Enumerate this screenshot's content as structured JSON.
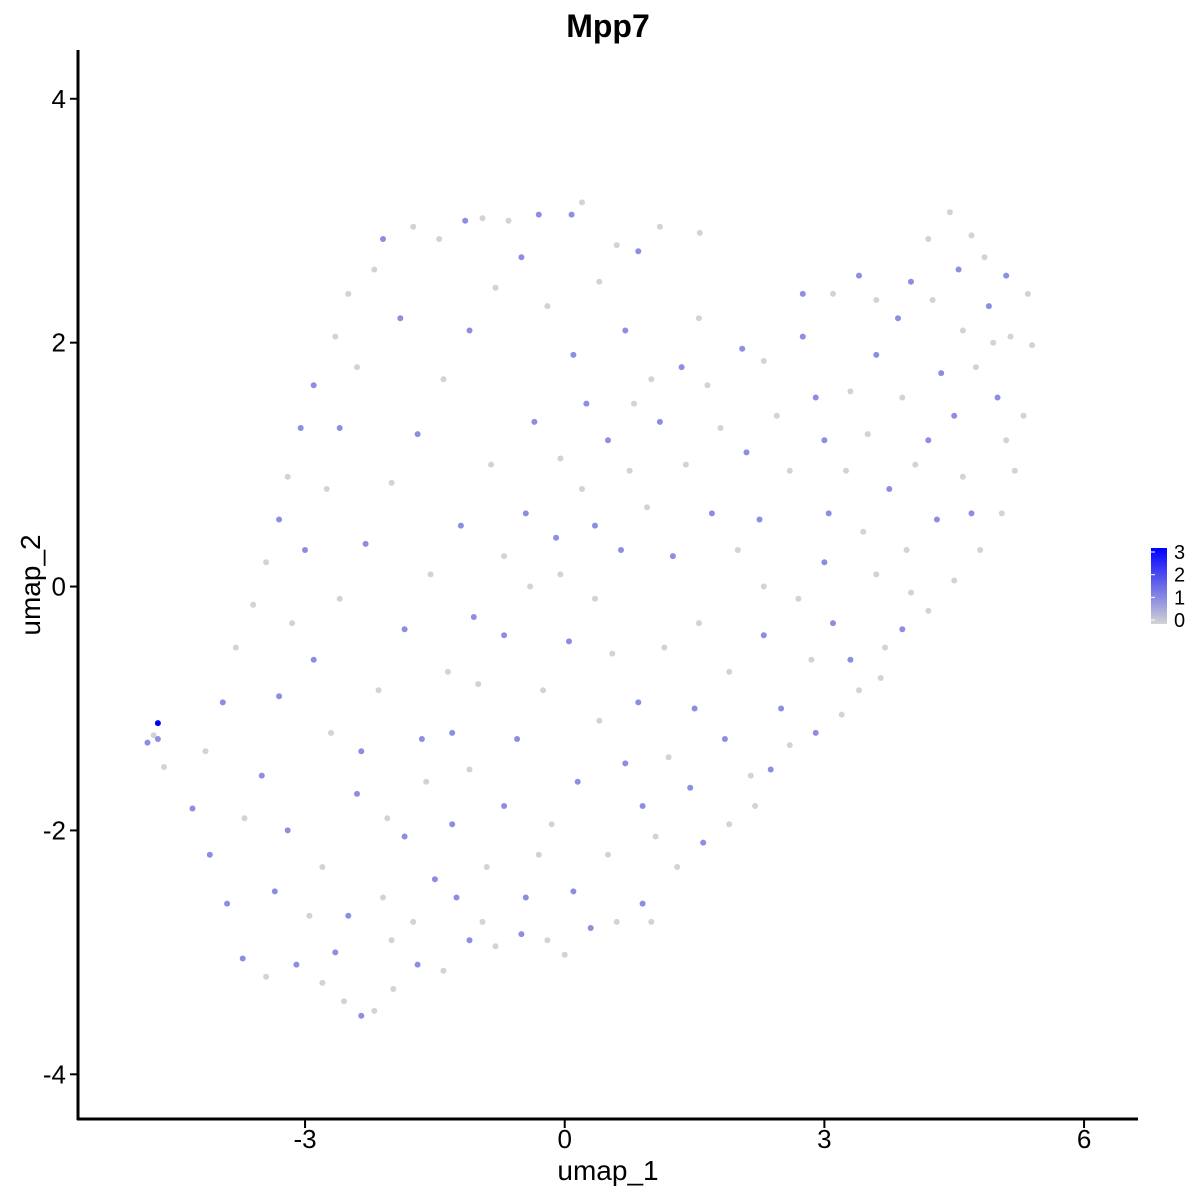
{
  "chart_data": {
    "type": "scatter",
    "title": "Mpp7",
    "xlabel": "umap_1",
    "ylabel": "umap_2",
    "xlim": [
      -5.6,
      6.6
    ],
    "ylim": [
      -4.35,
      4.4
    ],
    "xticks": [
      -3,
      0,
      3,
      6
    ],
    "xtick_labels": [
      "-3",
      "0",
      "3",
      "6"
    ],
    "yticks": [
      -4,
      -2,
      0,
      2,
      4
    ],
    "ytick_labels": [
      "-4",
      "-2",
      "0",
      "2",
      "4"
    ],
    "grid": false,
    "legend": {
      "placement": "right",
      "type": "colorbar",
      "min": 0,
      "max": 3,
      "ticks": [
        "0",
        "1",
        "2",
        "3"
      ],
      "low_color": "#d3d3d3",
      "high_color": "#0000ff"
    },
    "point_color_low": "#d3d3d3",
    "point_color_high": "#0000ff",
    "points": [
      {
        "x": -4.7,
        "y": -1.12,
        "expr": 3
      },
      {
        "x": -4.82,
        "y": -1.28,
        "expr": 1
      },
      {
        "x": -4.7,
        "y": -1.25,
        "expr": 1
      },
      {
        "x": -4.75,
        "y": -1.22,
        "expr": 0
      },
      {
        "x": -4.63,
        "y": -1.48,
        "expr": 0
      },
      {
        "x": -4.3,
        "y": -1.82,
        "expr": 1
      },
      {
        "x": -4.1,
        "y": -2.2,
        "expr": 1
      },
      {
        "x": -3.9,
        "y": -2.6,
        "expr": 1
      },
      {
        "x": -3.72,
        "y": -3.05,
        "expr": 1
      },
      {
        "x": -3.45,
        "y": -3.2,
        "expr": 0
      },
      {
        "x": -3.1,
        "y": -3.1,
        "expr": 1
      },
      {
        "x": -2.8,
        "y": -3.25,
        "expr": 0
      },
      {
        "x": -2.55,
        "y": -3.4,
        "expr": 0
      },
      {
        "x": -2.35,
        "y": -3.52,
        "expr": 1
      },
      {
        "x": -2.2,
        "y": -3.48,
        "expr": 0
      },
      {
        "x": -1.98,
        "y": -3.3,
        "expr": 0
      },
      {
        "x": -1.7,
        "y": -3.1,
        "expr": 1
      },
      {
        "x": -1.4,
        "y": -3.15,
        "expr": 0
      },
      {
        "x": -1.1,
        "y": -2.9,
        "expr": 1
      },
      {
        "x": -0.8,
        "y": -2.95,
        "expr": 0
      },
      {
        "x": -0.5,
        "y": -2.85,
        "expr": 1
      },
      {
        "x": -0.2,
        "y": -2.9,
        "expr": 0
      },
      {
        "x": 0.0,
        "y": -3.02,
        "expr": 0
      },
      {
        "x": 0.3,
        "y": -2.8,
        "expr": 1
      },
      {
        "x": 0.6,
        "y": -2.75,
        "expr": 0
      },
      {
        "x": 0.9,
        "y": -2.6,
        "expr": 1
      },
      {
        "x": 1.0,
        "y": -2.75,
        "expr": 0
      },
      {
        "x": 1.3,
        "y": -2.3,
        "expr": 0
      },
      {
        "x": 1.6,
        "y": -2.1,
        "expr": 1
      },
      {
        "x": 1.9,
        "y": -1.95,
        "expr": 0
      },
      {
        "x": 2.2,
        "y": -1.8,
        "expr": 0
      },
      {
        "x": 2.38,
        "y": -1.5,
        "expr": 1
      },
      {
        "x": 2.6,
        "y": -1.3,
        "expr": 0
      },
      {
        "x": 2.9,
        "y": -1.2,
        "expr": 1
      },
      {
        "x": 3.2,
        "y": -1.05,
        "expr": 0
      },
      {
        "x": 3.4,
        "y": -0.85,
        "expr": 0
      },
      {
        "x": 3.65,
        "y": -0.75,
        "expr": 0
      },
      {
        "x": 3.9,
        "y": -0.35,
        "expr": 1
      },
      {
        "x": 4.2,
        "y": -0.2,
        "expr": 0
      },
      {
        "x": 4.5,
        "y": 0.05,
        "expr": 0
      },
      {
        "x": 4.8,
        "y": 0.3,
        "expr": 0
      },
      {
        "x": 5.05,
        "y": 0.6,
        "expr": 0
      },
      {
        "x": 5.2,
        "y": 0.95,
        "expr": 0
      },
      {
        "x": 5.3,
        "y": 1.4,
        "expr": 0
      },
      {
        "x": 5.4,
        "y": 1.98,
        "expr": 0
      },
      {
        "x": 5.35,
        "y": 2.4,
        "expr": 0
      },
      {
        "x": 5.1,
        "y": 2.55,
        "expr": 1
      },
      {
        "x": 4.85,
        "y": 2.7,
        "expr": 0
      },
      {
        "x": 4.7,
        "y": 2.88,
        "expr": 0
      },
      {
        "x": 4.45,
        "y": 3.07,
        "expr": 0
      },
      {
        "x": 4.2,
        "y": 2.85,
        "expr": 0
      },
      {
        "x": 4.0,
        "y": 2.5,
        "expr": 1
      },
      {
        "x": 3.6,
        "y": 2.35,
        "expr": 0
      },
      {
        "x": 3.4,
        "y": 2.55,
        "expr": 1
      },
      {
        "x": 3.1,
        "y": 2.4,
        "expr": 0
      },
      {
        "x": 2.75,
        "y": 2.05,
        "expr": 1
      },
      {
        "x": 2.75,
        "y": 2.4,
        "expr": 1
      },
      {
        "x": 2.3,
        "y": 1.85,
        "expr": 0
      },
      {
        "x": 2.05,
        "y": 1.95,
        "expr": 1
      },
      {
        "x": 1.65,
        "y": 1.65,
        "expr": 0
      },
      {
        "x": 1.55,
        "y": 2.2,
        "expr": 0
      },
      {
        "x": 1.56,
        "y": 2.9,
        "expr": 0
      },
      {
        "x": 1.1,
        "y": 2.95,
        "expr": 0
      },
      {
        "x": 0.85,
        "y": 2.75,
        "expr": 1
      },
      {
        "x": 0.6,
        "y": 2.8,
        "expr": 0
      },
      {
        "x": 0.2,
        "y": 3.15,
        "expr": 0
      },
      {
        "x": 0.08,
        "y": 3.05,
        "expr": 1
      },
      {
        "x": -0.3,
        "y": 3.05,
        "expr": 1
      },
      {
        "x": -0.65,
        "y": 3.0,
        "expr": 0
      },
      {
        "x": -0.95,
        "y": 3.02,
        "expr": 0
      },
      {
        "x": -1.15,
        "y": 3.0,
        "expr": 1
      },
      {
        "x": -1.45,
        "y": 2.85,
        "expr": 0
      },
      {
        "x": -1.75,
        "y": 2.95,
        "expr": 0
      },
      {
        "x": -2.1,
        "y": 2.85,
        "expr": 1
      },
      {
        "x": -2.2,
        "y": 2.6,
        "expr": 0
      },
      {
        "x": -2.5,
        "y": 2.4,
        "expr": 0
      },
      {
        "x": -2.65,
        "y": 2.05,
        "expr": 0
      },
      {
        "x": -2.9,
        "y": 1.65,
        "expr": 1
      },
      {
        "x": -3.05,
        "y": 1.3,
        "expr": 1
      },
      {
        "x": -3.2,
        "y": 0.9,
        "expr": 0
      },
      {
        "x": -3.3,
        "y": 0.55,
        "expr": 1
      },
      {
        "x": -3.45,
        "y": 0.2,
        "expr": 0
      },
      {
        "x": -3.6,
        "y": -0.15,
        "expr": 0
      },
      {
        "x": -3.8,
        "y": -0.5,
        "expr": 0
      },
      {
        "x": -3.95,
        "y": -0.95,
        "expr": 1
      },
      {
        "x": -4.15,
        "y": -1.35,
        "expr": 0
      },
      {
        "x": -3.5,
        "y": -1.55,
        "expr": 1
      },
      {
        "x": -3.2,
        "y": -2.0,
        "expr": 1
      },
      {
        "x": -2.8,
        "y": -2.3,
        "expr": 0
      },
      {
        "x": -2.5,
        "y": -2.7,
        "expr": 1
      },
      {
        "x": -2.1,
        "y": -2.55,
        "expr": 0
      },
      {
        "x": -1.85,
        "y": -2.05,
        "expr": 1
      },
      {
        "x": -1.6,
        "y": -1.6,
        "expr": 0
      },
      {
        "x": -1.3,
        "y": -1.2,
        "expr": 1
      },
      {
        "x": -1.0,
        "y": -0.8,
        "expr": 0
      },
      {
        "x": -0.7,
        "y": -0.4,
        "expr": 1
      },
      {
        "x": -0.4,
        "y": 0.0,
        "expr": 0
      },
      {
        "x": -0.1,
        "y": 0.4,
        "expr": 1
      },
      {
        "x": 0.2,
        "y": 0.8,
        "expr": 0
      },
      {
        "x": 0.5,
        "y": 1.2,
        "expr": 1
      },
      {
        "x": 0.8,
        "y": 1.5,
        "expr": 0
      },
      {
        "x": 1.1,
        "y": 1.35,
        "expr": 1
      },
      {
        "x": 1.4,
        "y": 1.0,
        "expr": 0
      },
      {
        "x": 1.7,
        "y": 0.6,
        "expr": 1
      },
      {
        "x": 2.0,
        "y": 0.3,
        "expr": 0
      },
      {
        "x": 2.25,
        "y": 0.55,
        "expr": 1
      },
      {
        "x": 2.6,
        "y": 0.95,
        "expr": 0
      },
      {
        "x": 3.0,
        "y": 1.2,
        "expr": 1
      },
      {
        "x": 3.3,
        "y": 1.6,
        "expr": 0
      },
      {
        "x": 3.6,
        "y": 1.9,
        "expr": 1
      },
      {
        "x": 3.9,
        "y": 1.55,
        "expr": 0
      },
      {
        "x": 4.2,
        "y": 1.2,
        "expr": 1
      },
      {
        "x": 4.5,
        "y": 1.4,
        "expr": 1
      },
      {
        "x": 4.75,
        "y": 1.8,
        "expr": 0
      },
      {
        "x": 4.9,
        "y": 2.3,
        "expr": 1
      },
      {
        "x": 4.6,
        "y": 0.9,
        "expr": 0
      },
      {
        "x": 4.3,
        "y": 0.55,
        "expr": 1
      },
      {
        "x": 3.95,
        "y": 0.3,
        "expr": 0
      },
      {
        "x": 3.6,
        "y": 0.1,
        "expr": 0
      },
      {
        "x": 3.0,
        "y": 0.2,
        "expr": 1
      },
      {
        "x": 2.7,
        "y": -0.1,
        "expr": 0
      },
      {
        "x": 2.3,
        "y": -0.4,
        "expr": 1
      },
      {
        "x": 1.9,
        "y": -0.7,
        "expr": 0
      },
      {
        "x": 1.5,
        "y": -1.0,
        "expr": 1
      },
      {
        "x": 1.2,
        "y": -1.4,
        "expr": 0
      },
      {
        "x": 0.9,
        "y": -1.8,
        "expr": 1
      },
      {
        "x": 0.5,
        "y": -2.2,
        "expr": 0
      },
      {
        "x": 0.1,
        "y": -2.5,
        "expr": 1
      },
      {
        "x": -0.3,
        "y": -2.2,
        "expr": 0
      },
      {
        "x": -0.7,
        "y": -1.8,
        "expr": 1
      },
      {
        "x": -1.1,
        "y": -1.5,
        "expr": 0
      },
      {
        "x": -1.5,
        "y": -2.4,
        "expr": 1
      },
      {
        "x": -2.0,
        "y": -2.9,
        "expr": 0
      },
      {
        "x": -2.4,
        "y": -1.7,
        "expr": 1
      },
      {
        "x": -2.7,
        "y": -1.2,
        "expr": 0
      },
      {
        "x": -2.9,
        "y": -0.6,
        "expr": 1
      },
      {
        "x": -2.6,
        "y": -0.1,
        "expr": 0
      },
      {
        "x": -2.3,
        "y": 0.35,
        "expr": 1
      },
      {
        "x": -2.0,
        "y": 0.85,
        "expr": 0
      },
      {
        "x": -1.7,
        "y": 1.25,
        "expr": 1
      },
      {
        "x": -1.4,
        "y": 1.7,
        "expr": 0
      },
      {
        "x": -1.1,
        "y": 2.1,
        "expr": 1
      },
      {
        "x": -0.8,
        "y": 2.45,
        "expr": 0
      },
      {
        "x": -0.5,
        "y": 2.7,
        "expr": 1
      },
      {
        "x": -0.2,
        "y": 2.3,
        "expr": 0
      },
      {
        "x": 0.1,
        "y": 1.9,
        "expr": 1
      },
      {
        "x": 0.4,
        "y": 2.5,
        "expr": 0
      },
      {
        "x": 0.7,
        "y": 2.1,
        "expr": 1
      },
      {
        "x": 1.0,
        "y": 1.7,
        "expr": 0
      },
      {
        "x": -1.9,
        "y": 2.2,
        "expr": 1
      },
      {
        "x": -2.4,
        "y": 1.8,
        "expr": 0
      },
      {
        "x": -2.6,
        "y": 1.3,
        "expr": 1
      },
      {
        "x": -2.75,
        "y": 0.8,
        "expr": 0
      },
      {
        "x": -3.0,
        "y": 0.3,
        "expr": 1
      },
      {
        "x": -3.15,
        "y": -0.3,
        "expr": 0
      },
      {
        "x": -3.3,
        "y": -0.9,
        "expr": 1
      },
      {
        "x": -3.7,
        "y": -1.9,
        "expr": 0
      },
      {
        "x": -3.35,
        "y": -2.5,
        "expr": 1
      },
      {
        "x": -2.95,
        "y": -2.7,
        "expr": 0
      },
      {
        "x": -2.65,
        "y": -3.0,
        "expr": 1
      },
      {
        "x": -1.75,
        "y": -2.75,
        "expr": 0
      },
      {
        "x": -1.25,
        "y": -2.55,
        "expr": 1
      },
      {
        "x": -0.9,
        "y": -2.3,
        "expr": 0
      },
      {
        "x": -0.55,
        "y": -1.25,
        "expr": 1
      },
      {
        "x": -0.25,
        "y": -0.85,
        "expr": 0
      },
      {
        "x": 0.05,
        "y": -0.45,
        "expr": 1
      },
      {
        "x": 0.35,
        "y": -0.1,
        "expr": 0
      },
      {
        "x": 0.65,
        "y": 0.3,
        "expr": 1
      },
      {
        "x": 0.95,
        "y": 0.65,
        "expr": 0
      },
      {
        "x": 1.25,
        "y": 0.25,
        "expr": 1
      },
      {
        "x": 1.55,
        "y": -0.3,
        "expr": 0
      },
      {
        "x": 1.85,
        "y": -1.25,
        "expr": 1
      },
      {
        "x": 2.15,
        "y": -1.55,
        "expr": 0
      },
      {
        "x": 2.5,
        "y": -1.0,
        "expr": 1
      },
      {
        "x": 2.85,
        "y": -0.6,
        "expr": 0
      },
      {
        "x": 3.1,
        "y": -0.3,
        "expr": 1
      },
      {
        "x": 3.45,
        "y": 0.45,
        "expr": 0
      },
      {
        "x": 3.75,
        "y": 0.8,
        "expr": 1
      },
      {
        "x": 4.05,
        "y": 1.0,
        "expr": 0
      },
      {
        "x": 4.35,
        "y": 1.75,
        "expr": 1
      },
      {
        "x": 4.6,
        "y": 2.1,
        "expr": 0
      },
      {
        "x": 5.0,
        "y": 1.55,
        "expr": 1
      },
      {
        "x": 5.15,
        "y": 2.05,
        "expr": 0
      },
      {
        "x": 3.25,
        "y": 0.95,
        "expr": 0
      },
      {
        "x": 2.9,
        "y": 1.55,
        "expr": 1
      },
      {
        "x": 2.45,
        "y": 1.4,
        "expr": 0
      },
      {
        "x": 2.1,
        "y": 1.1,
        "expr": 1
      },
      {
        "x": 1.8,
        "y": 1.3,
        "expr": 0
      },
      {
        "x": 1.35,
        "y": 1.8,
        "expr": 1
      },
      {
        "x": 0.75,
        "y": 0.95,
        "expr": 0
      },
      {
        "x": 0.35,
        "y": 0.5,
        "expr": 1
      },
      {
        "x": -0.05,
        "y": 0.1,
        "expr": 0
      },
      {
        "x": -0.45,
        "y": 0.6,
        "expr": 1
      },
      {
        "x": -0.85,
        "y": 1.0,
        "expr": 0
      },
      {
        "x": -1.2,
        "y": 0.5,
        "expr": 1
      },
      {
        "x": -1.55,
        "y": 0.1,
        "expr": 0
      },
      {
        "x": -1.85,
        "y": -0.35,
        "expr": 1
      },
      {
        "x": -2.15,
        "y": -0.85,
        "expr": 0
      },
      {
        "x": -2.35,
        "y": -1.35,
        "expr": 1
      },
      {
        "x": -2.05,
        "y": -1.9,
        "expr": 0
      },
      {
        "x": -1.65,
        "y": -1.25,
        "expr": 1
      },
      {
        "x": -1.35,
        "y": -0.7,
        "expr": 0
      },
      {
        "x": -1.05,
        "y": -0.25,
        "expr": 1
      },
      {
        "x": -0.7,
        "y": 0.25,
        "expr": 0
      },
      {
        "x": -0.35,
        "y": 1.35,
        "expr": 1
      },
      {
        "x": -0.05,
        "y": 1.05,
        "expr": 0
      },
      {
        "x": 0.25,
        "y": 1.5,
        "expr": 1
      },
      {
        "x": 0.55,
        "y": -0.55,
        "expr": 0
      },
      {
        "x": 0.85,
        "y": -0.95,
        "expr": 1
      },
      {
        "x": 1.15,
        "y": -0.5,
        "expr": 0
      },
      {
        "x": 1.45,
        "y": -1.65,
        "expr": 1
      },
      {
        "x": 1.05,
        "y": -2.05,
        "expr": 0
      },
      {
        "x": 0.7,
        "y": -1.45,
        "expr": 1
      },
      {
        "x": 0.4,
        "y": -1.1,
        "expr": 0
      },
      {
        "x": 0.15,
        "y": -1.6,
        "expr": 1
      },
      {
        "x": -0.15,
        "y": -1.95,
        "expr": 0
      },
      {
        "x": -0.45,
        "y": -2.55,
        "expr": 1
      },
      {
        "x": -0.95,
        "y": -2.75,
        "expr": 0
      },
      {
        "x": -1.3,
        "y": -1.95,
        "expr": 1
      },
      {
        "x": 2.3,
        "y": 0.0,
        "expr": 0
      },
      {
        "x": 3.05,
        "y": 0.6,
        "expr": 1
      },
      {
        "x": 3.5,
        "y": 1.25,
        "expr": 0
      },
      {
        "x": 3.85,
        "y": 2.2,
        "expr": 1
      },
      {
        "x": 4.25,
        "y": 2.35,
        "expr": 0
      },
      {
        "x": 4.55,
        "y": 2.6,
        "expr": 1
      },
      {
        "x": 4.95,
        "y": 2.0,
        "expr": 0
      },
      {
        "x": 5.1,
        "y": 1.2,
        "expr": 0
      },
      {
        "x": 4.7,
        "y": 0.6,
        "expr": 1
      },
      {
        "x": 4.0,
        "y": -0.05,
        "expr": 0
      },
      {
        "x": 3.7,
        "y": -0.5,
        "expr": 0
      },
      {
        "x": 3.3,
        "y": -0.6,
        "expr": 1
      }
    ]
  }
}
